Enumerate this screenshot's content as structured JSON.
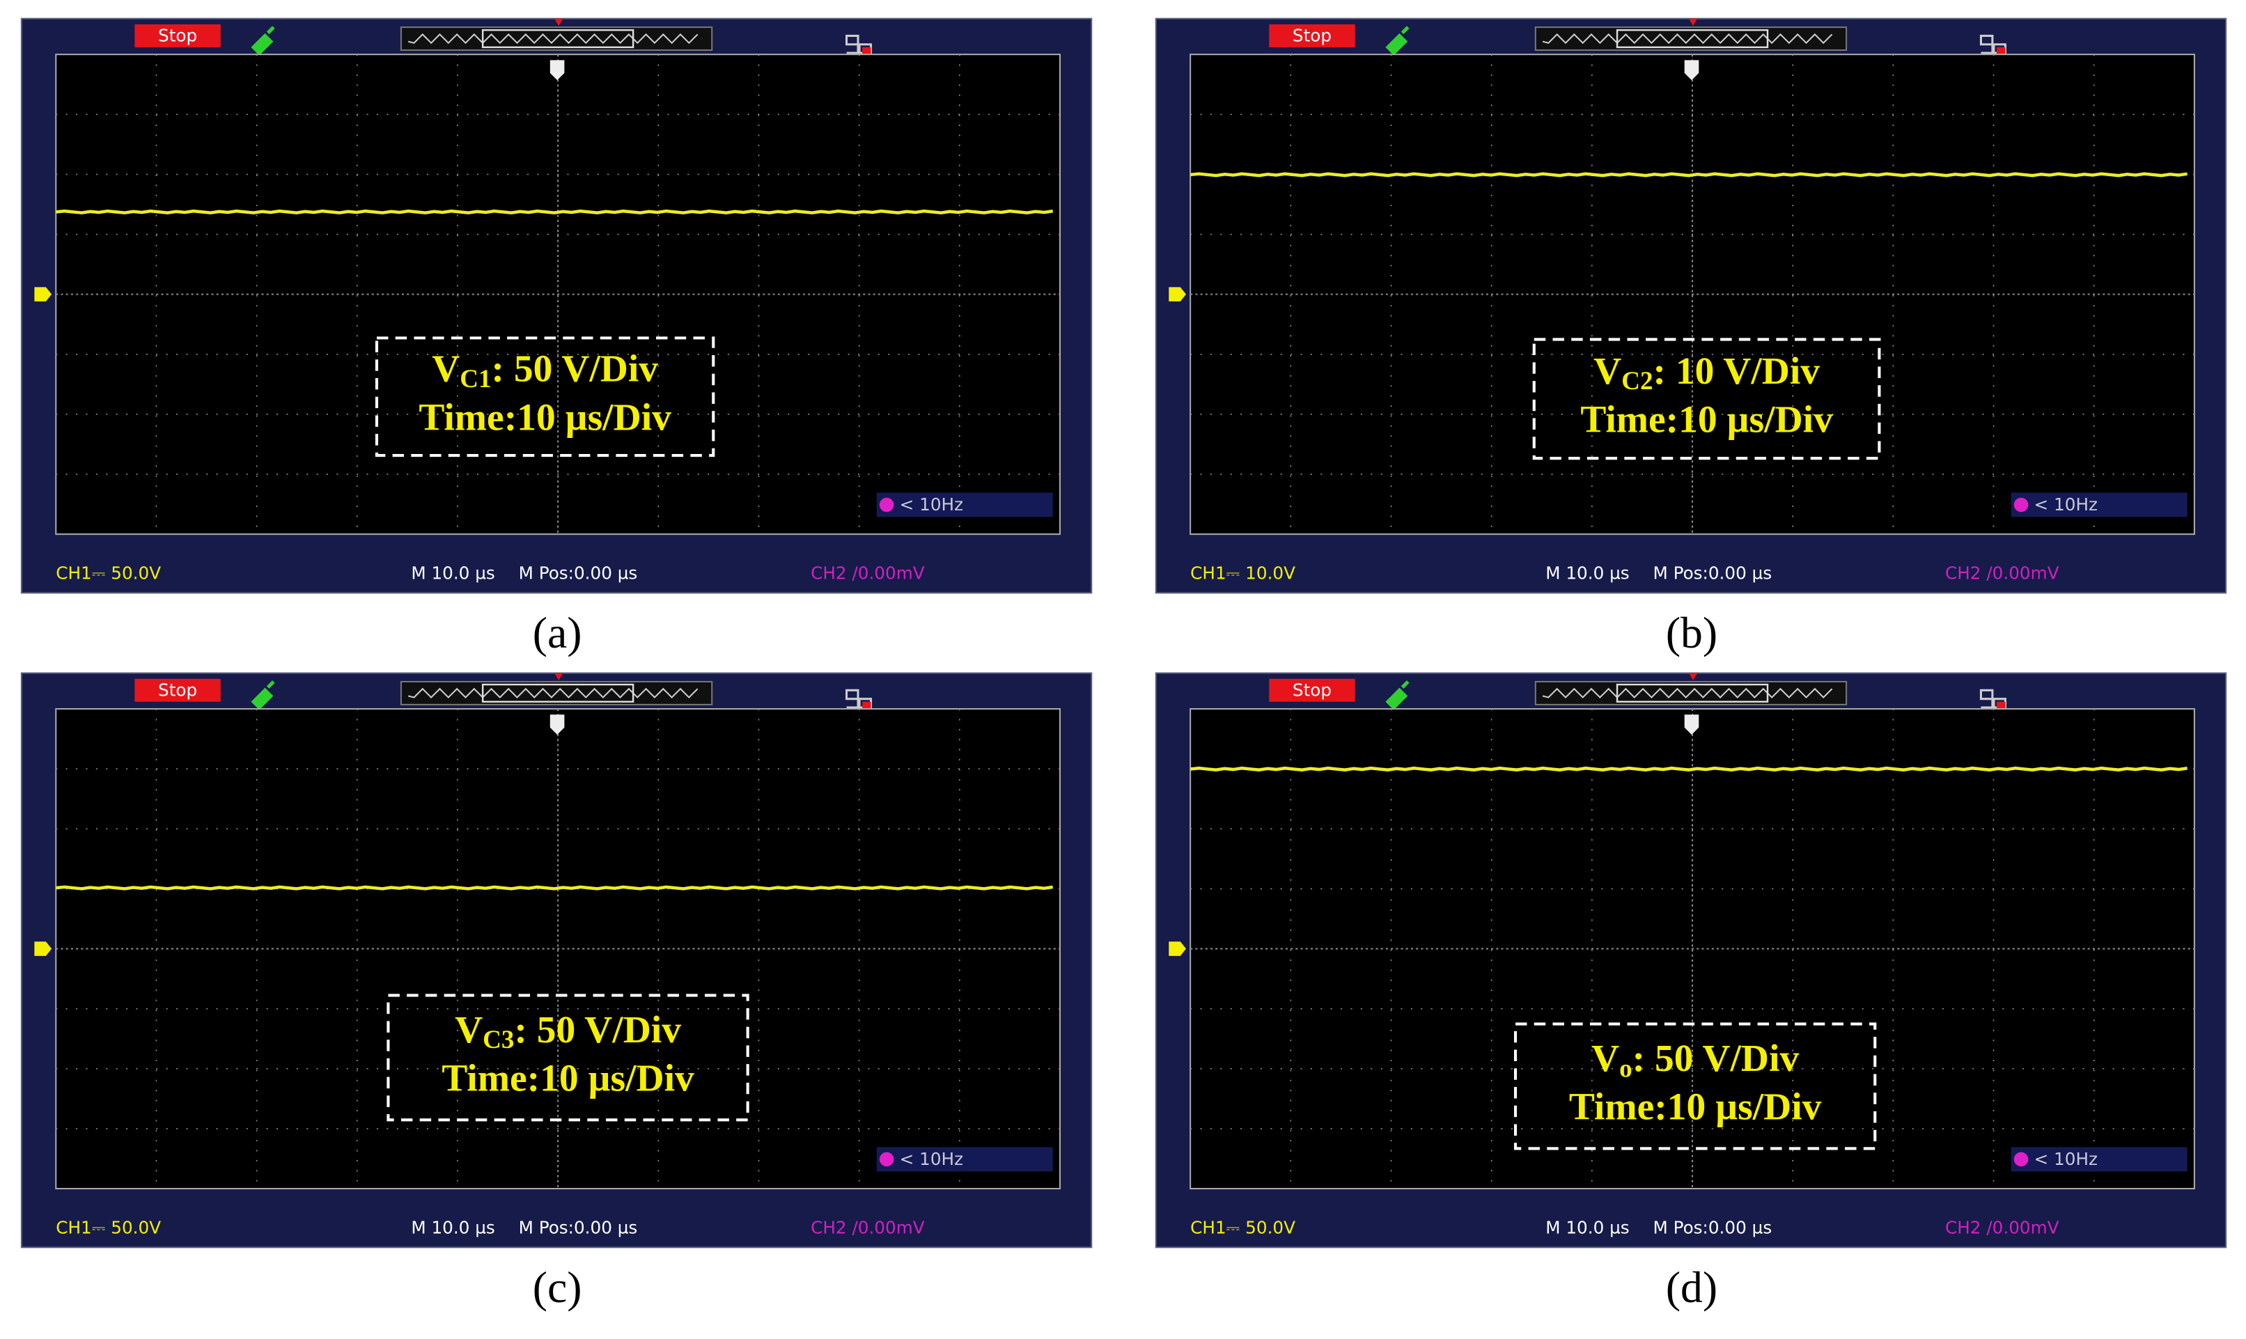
{
  "panels": [
    {
      "caption": "(a)",
      "status": "Stop",
      "trigger_freq": "< 10Hz",
      "ch1": "CH1⎓ 50.0V",
      "timebase": "M 10.0 µs",
      "mpos": "M Pos:0.00 µs",
      "ch2": "CH2 /0.00mV",
      "annotation": {
        "symbol": "V",
        "subscript": "C1",
        "scale": ": 50 V/Div",
        "time": "Time:10 µs/Div"
      }
    },
    {
      "caption": "(b)",
      "status": "Stop",
      "trigger_freq": "< 10Hz",
      "ch1": "CH1⎓ 10.0V",
      "timebase": "M 10.0 µs",
      "mpos": "M Pos:0.00 µs",
      "ch2": "CH2 /0.00mV",
      "annotation": {
        "symbol": "V",
        "subscript": "C2",
        "scale": ": 10 V/Div",
        "time": "Time:10 µs/Div"
      }
    },
    {
      "caption": "(c)",
      "status": "Stop",
      "trigger_freq": "< 10Hz",
      "ch1": "CH1⎓ 50.0V",
      "timebase": "M 10.0 µs",
      "mpos": "M Pos:0.00 µs",
      "ch2": "CH2 /0.00mV",
      "annotation": {
        "symbol": "V",
        "subscript": "C3",
        "scale": ": 50 V/Div",
        "time": "Time:10 µs/Div"
      }
    },
    {
      "caption": "(d)",
      "status": "Stop",
      "trigger_freq": "< 10Hz",
      "ch1": "CH1⎓ 50.0V",
      "timebase": "M 10.0 µs",
      "mpos": "M Pos:0.00 µs",
      "ch2": "CH2 /0.00mV",
      "annotation": {
        "symbol": "V",
        "subscript": "o",
        "scale": ": 50 V/Div",
        "time": "Time:10 µs/Div"
      }
    }
  ]
}
